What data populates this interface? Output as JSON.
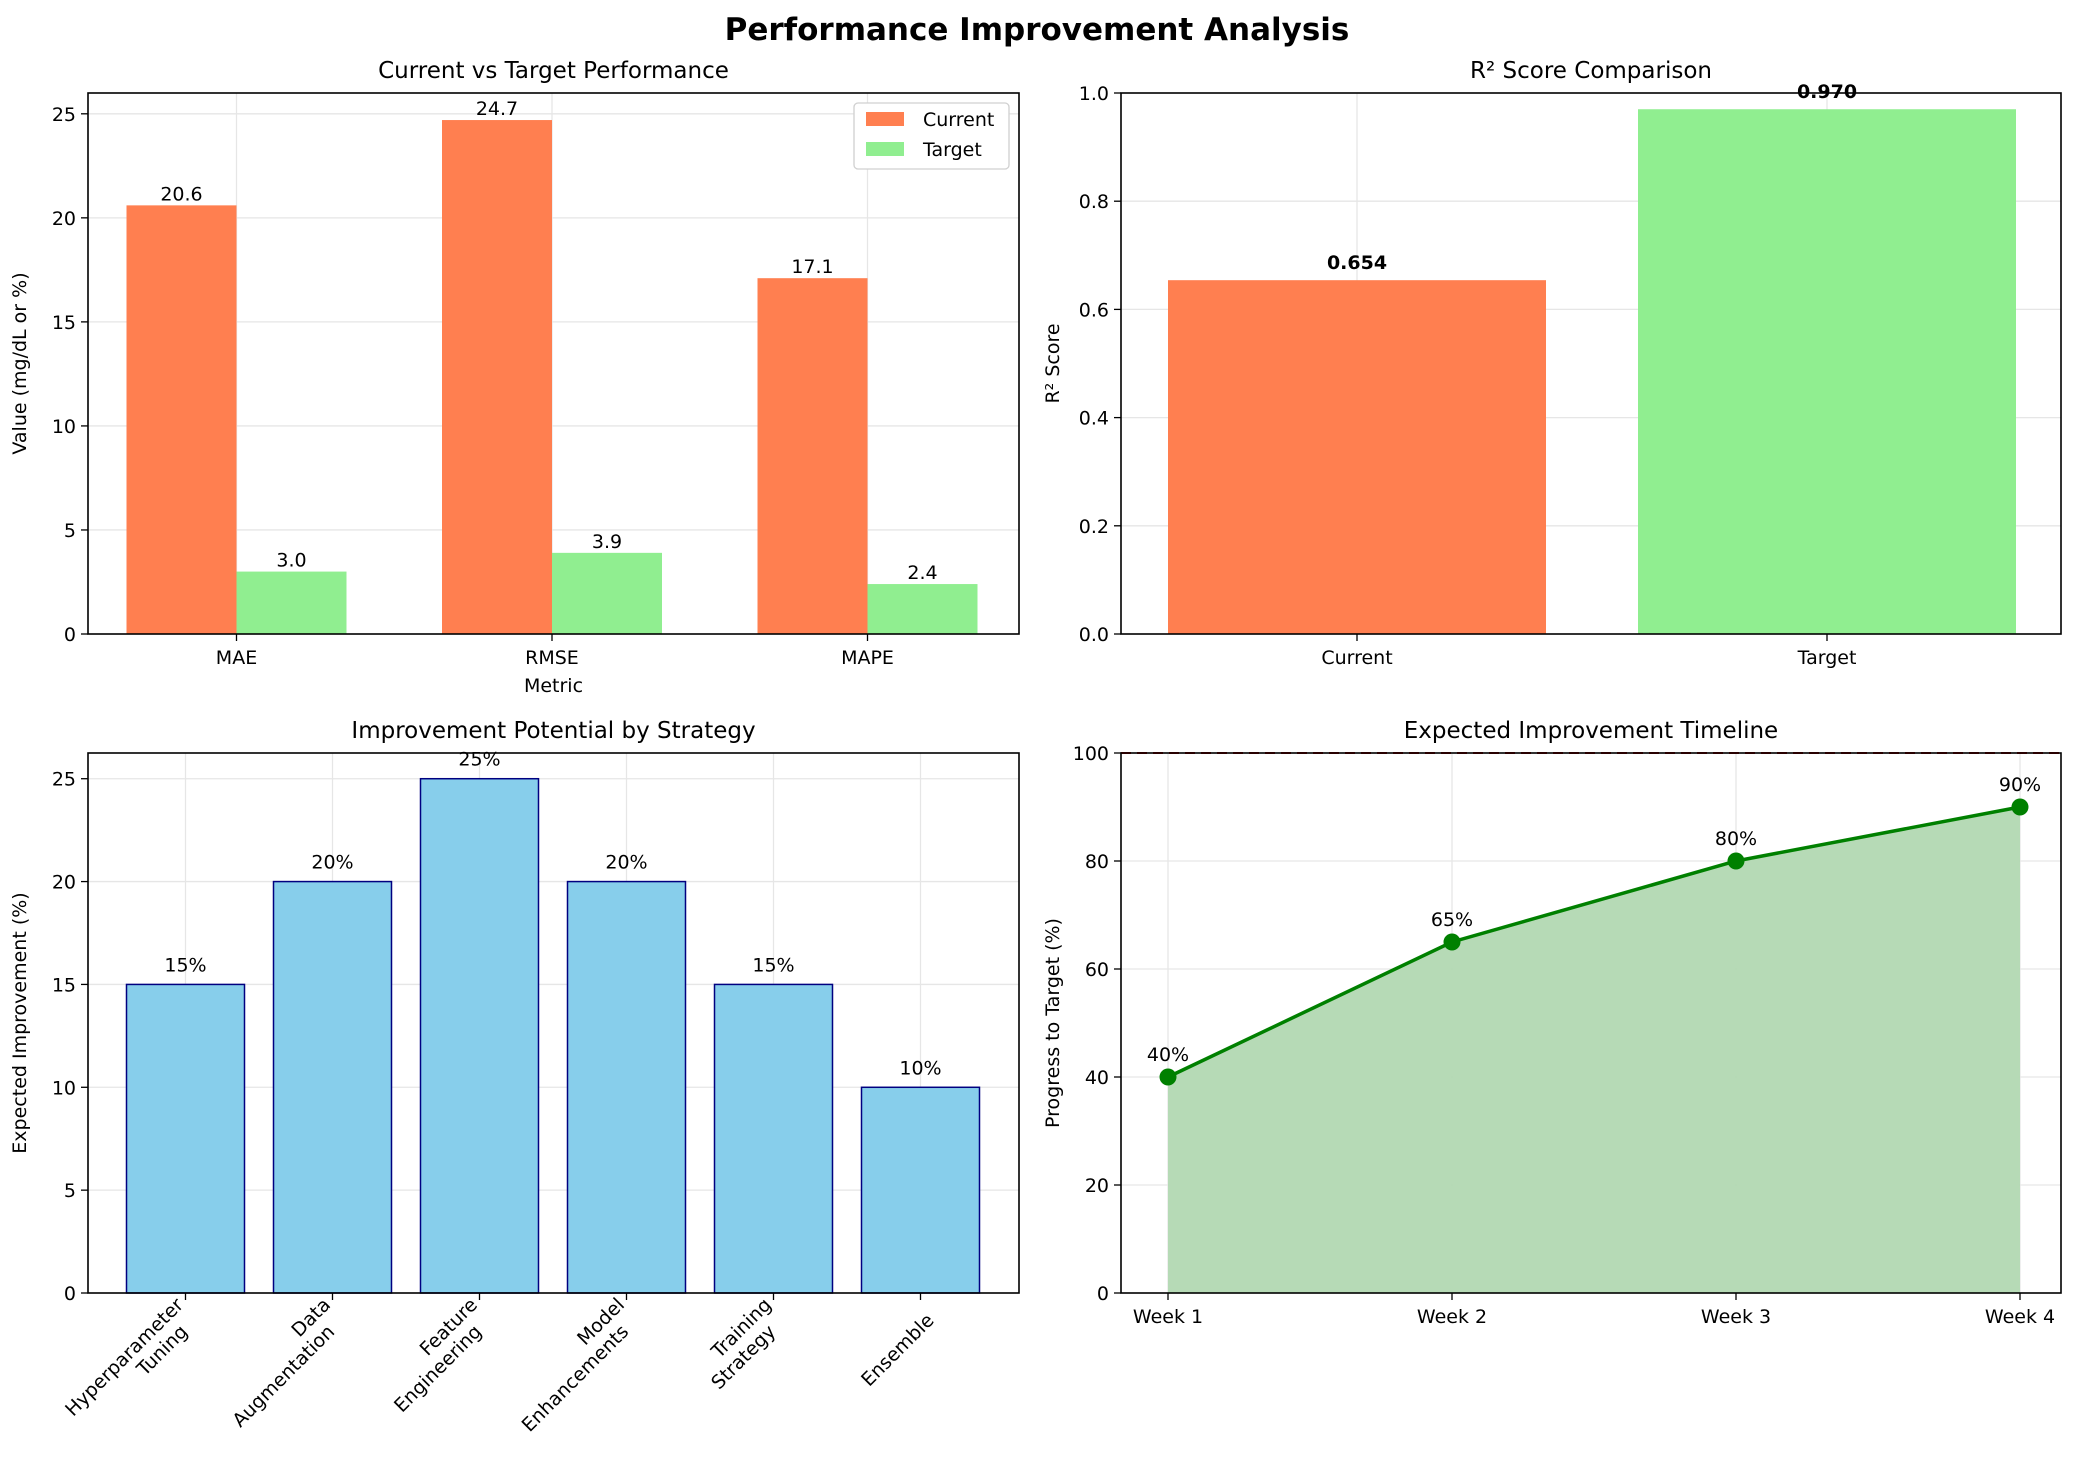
{
  "figure": {
    "title": "Performance Improvement Analysis"
  },
  "colors": {
    "current": "#ff7f50",
    "target": "#90ee90",
    "strategy_fill": "#87ceeb",
    "strategy_edge": "#000080",
    "timeline_line": "#008000",
    "timeline_fill": "#b2d8b2",
    "target_line": "#cc0000",
    "grid": "#e6e6e6"
  },
  "chart_data": [
    {
      "type": "bar",
      "title": "Current vs Target Performance",
      "xlabel": "Metric",
      "ylabel": "Value (mg/dL or %)",
      "categories": [
        "MAE",
        "RMSE",
        "MAPE"
      ],
      "series": [
        {
          "name": "Current",
          "values": [
            20.6,
            24.7,
            17.1
          ],
          "labels": [
            "20.6",
            "24.7",
            "17.1"
          ]
        },
        {
          "name": "Target",
          "values": [
            3.0,
            3.9,
            2.4
          ],
          "labels": [
            "3.0",
            "3.9",
            "2.4"
          ]
        }
      ],
      "ylim": [
        0,
        26
      ],
      "yticks": [
        0,
        5,
        10,
        15,
        20,
        25
      ],
      "legend": "top-right",
      "grid": true
    },
    {
      "type": "bar",
      "title": "R² Score Comparison",
      "xlabel": "",
      "ylabel": "R² Score",
      "categories": [
        "Current",
        "Target"
      ],
      "values": [
        0.654,
        0.97
      ],
      "labels": [
        "0.654",
        "0.970"
      ],
      "ylim": [
        0,
        1.0
      ],
      "yticks": [
        "0.0",
        "0.2",
        "0.4",
        "0.6",
        "0.8",
        "1.0"
      ],
      "grid": true
    },
    {
      "type": "bar",
      "title": "Improvement Potential by Strategy",
      "xlabel": "",
      "ylabel": "Expected Improvement (%)",
      "categories": [
        [
          "Hyperparameter",
          "Tuning"
        ],
        [
          "Data",
          "Augmentation"
        ],
        [
          "Feature",
          "Engineering"
        ],
        [
          "Model",
          "Enhancements"
        ],
        [
          "Training",
          "Strategy"
        ],
        [
          "Ensemble"
        ]
      ],
      "values": [
        15,
        20,
        25,
        20,
        15,
        10
      ],
      "labels": [
        "15%",
        "20%",
        "25%",
        "20%",
        "15%",
        "10%"
      ],
      "ylim": [
        0,
        26.25
      ],
      "yticks": [
        0,
        5,
        10,
        15,
        20,
        25
      ],
      "grid": true
    },
    {
      "type": "area",
      "title": "Expected Improvement Timeline",
      "xlabel": "",
      "ylabel": "Progress to Target (%)",
      "categories": [
        "Week 1",
        "Week 2",
        "Week 3",
        "Week 4"
      ],
      "values": [
        40,
        65,
        80,
        90
      ],
      "labels": [
        "40%",
        "65%",
        "80%",
        "90%"
      ],
      "ylim": [
        0,
        100
      ],
      "yticks": [
        0,
        20,
        40,
        60,
        80,
        100
      ],
      "target_line": 100,
      "grid": true
    }
  ]
}
